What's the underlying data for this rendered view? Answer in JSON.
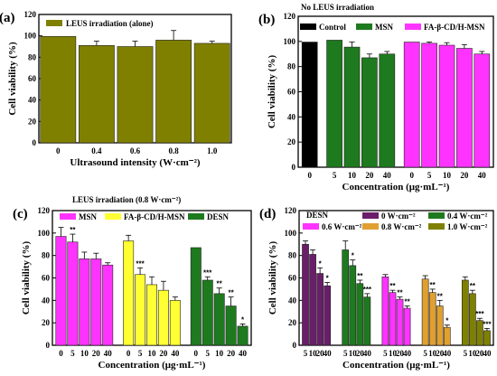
{
  "chart_data": [
    {
      "panel": "(a)",
      "type": "bar",
      "legend": "LEUS irradiation (alone)",
      "xlabel": "Ultrasound intensity (W·cm⁻²)",
      "ylabel": "Cell viability (%)",
      "ylim": [
        0,
        120
      ],
      "yticks": [
        "0",
        "20",
        "40",
        "60",
        "80",
        "100",
        "120"
      ],
      "categories": [
        "0",
        "0.4",
        "0.6",
        "0.8",
        "1.0"
      ],
      "values": [
        99.5,
        91,
        90,
        96,
        93
      ],
      "errors": [
        0,
        4,
        5,
        9,
        2
      ],
      "color": "#808000"
    },
    {
      "panel": "(b)",
      "type": "bar",
      "note": "No LEUS irradiation",
      "xlabel": "Concentration (μg·mL⁻¹)",
      "ylabel": "Cell viability (%)",
      "ylim": [
        0,
        120
      ],
      "yticks": [
        "0",
        "20",
        "40",
        "60",
        "80",
        "100",
        "120"
      ],
      "series": [
        {
          "name": "Control",
          "color": "#000000",
          "categories": [
            "0"
          ],
          "values": [
            99.5
          ],
          "errors": [
            0
          ],
          "stars": [
            ""
          ]
        },
        {
          "name": "MSN",
          "color": "#1e7a1e",
          "categories": [
            "5",
            "10",
            "20",
            "40"
          ],
          "values": [
            101,
            95.5,
            87,
            90
          ],
          "errors": [
            0,
            4,
            3,
            2
          ],
          "stars": [
            "",
            "",
            "",
            ""
          ]
        },
        {
          "name": "FA-β-CD/H-MSN",
          "color": "#ff33ff",
          "categories": [
            "0",
            "5",
            "10",
            "20",
            "40"
          ],
          "values": [
            99.5,
            98.5,
            97,
            94.5,
            90
          ],
          "errors": [
            0,
            1,
            2,
            3,
            2
          ],
          "stars": [
            "",
            "",
            "",
            "",
            ""
          ]
        }
      ]
    },
    {
      "panel": "(c)",
      "type": "bar",
      "note": "LEUS irradiation (0.8 W·cm⁻²)",
      "xlabel": "Concentration (μg·mL⁻¹)",
      "ylabel": "Cell viability (%)",
      "ylim": [
        0,
        120
      ],
      "yticks": [
        "0",
        "20",
        "40",
        "60",
        "80",
        "100",
        "120"
      ],
      "series": [
        {
          "name": "MSN",
          "color": "#ff33ff",
          "categories": [
            "0",
            "5",
            "10",
            "20",
            "40"
          ],
          "values": [
            97,
            92,
            77,
            77,
            71.5
          ],
          "errors": [
            8,
            7,
            6,
            5,
            2
          ],
          "stars": [
            "",
            "**",
            "",
            "",
            ""
          ]
        },
        {
          "name": "FA-β-CD/H-MSN",
          "color": "#ffff33",
          "categories": [
            "0",
            "5",
            "10",
            "20",
            "40"
          ],
          "values": [
            93,
            63,
            54,
            49,
            40
          ],
          "errors": [
            5,
            6,
            7,
            8,
            3
          ],
          "stars": [
            "",
            "***",
            "",
            "",
            ""
          ]
        },
        {
          "name": "DESN",
          "color": "#1e7a1e",
          "categories": [
            "0",
            "5",
            "10",
            "20",
            "40"
          ],
          "values": [
            87,
            58,
            46,
            35,
            17
          ],
          "errors": [
            0,
            3,
            5,
            8,
            2
          ],
          "stars": [
            "",
            "***",
            "**",
            "**",
            "*"
          ]
        }
      ]
    },
    {
      "panel": "(d)",
      "type": "bar",
      "note": "DESN",
      "xlabel": "Concentration (μg·mL⁻¹)",
      "ylabel": "Cell viability (%)",
      "ylim": [
        0,
        120
      ],
      "yticks": [
        "0",
        "20",
        "40",
        "60",
        "80",
        "100",
        "120"
      ],
      "series": [
        {
          "name": "0 W·cm⁻²",
          "color": "#6a1e6a",
          "categories": [
            "5",
            "10",
            "20",
            "40"
          ],
          "values": [
            90,
            81,
            64,
            53
          ],
          "errors": [
            3,
            4,
            5,
            3
          ],
          "stars": [
            "",
            "",
            "*",
            "*"
          ]
        },
        {
          "name": "0.4 W·cm⁻²",
          "color": "#1e7a1e",
          "categories": [
            "5",
            "10",
            "20",
            "40"
          ],
          "values": [
            85,
            71,
            55,
            43
          ],
          "errors": [
            8,
            5,
            3,
            3
          ],
          "stars": [
            "",
            "*",
            "**",
            "***"
          ]
        },
        {
          "name": "0.6 W·cm⁻²",
          "color": "#ff33ff",
          "categories": [
            "5",
            "10",
            "20",
            "40"
          ],
          "values": [
            61,
            47,
            41,
            33
          ],
          "errors": [
            2,
            2,
            2,
            2
          ],
          "stars": [
            "",
            "**",
            "**",
            "**"
          ]
        },
        {
          "name": "0.8 W·cm⁻²",
          "color": "#e0a030",
          "categories": [
            "5",
            "10",
            "20",
            "40"
          ],
          "values": [
            59,
            47,
            35,
            16
          ],
          "errors": [
            3,
            3,
            5,
            2
          ],
          "stars": [
            "",
            "**",
            "**",
            "*"
          ]
        },
        {
          "name": "1.0 W·cm⁻²",
          "color": "#808000",
          "categories": [
            "5",
            "10",
            "20",
            "40"
          ],
          "values": [
            58,
            46,
            22,
            13
          ],
          "errors": [
            3,
            3,
            2,
            2
          ],
          "stars": [
            "",
            "**",
            "***",
            "***"
          ]
        }
      ]
    }
  ]
}
